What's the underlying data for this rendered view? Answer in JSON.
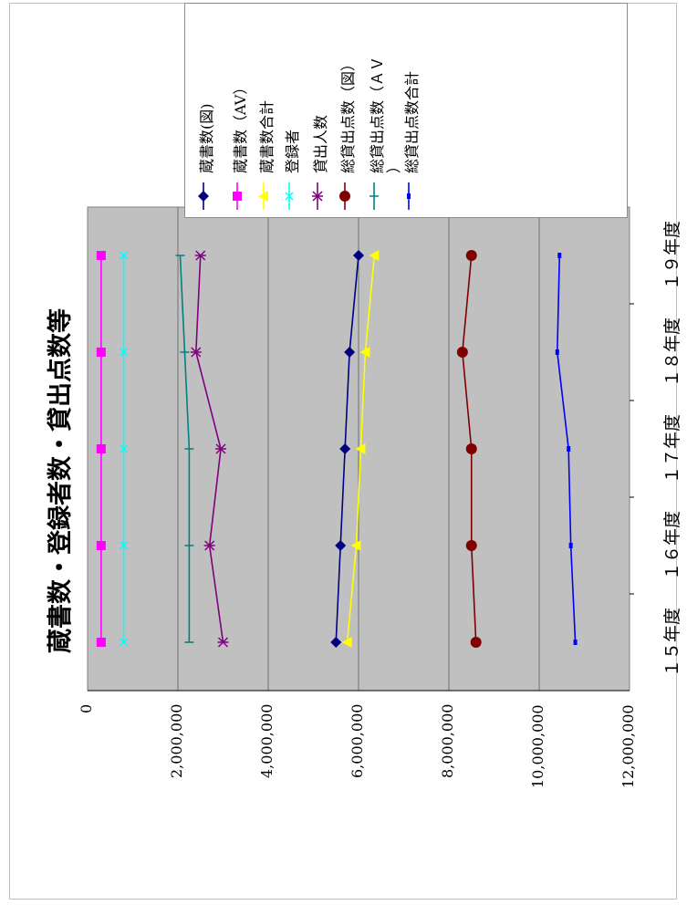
{
  "chart_data": {
    "type": "line",
    "title": "蔵書数・登録者数・貸出点数等",
    "categories": [
      "１５年度",
      "１６年度",
      "１７年度",
      "１８年度",
      "１９年度"
    ],
    "ylim": [
      0,
      12000000
    ],
    "y_ticks": [
      "0",
      "2,000,000",
      "4,000,000",
      "6,000,000",
      "8,000,000",
      "10,000,000",
      "12,000,000"
    ],
    "grid": true,
    "legend_position": "right",
    "background": "#c0c0c0",
    "series": [
      {
        "name": "蔵書数(図)",
        "color": "#000080",
        "marker": "diamond",
        "values": [
          5500000,
          5600000,
          5700000,
          5800000,
          6000000
        ]
      },
      {
        "name": "蔵書数（AV）",
        "color": "#ff00ff",
        "marker": "square",
        "values": [
          300000,
          300000,
          300000,
          300000,
          300000
        ]
      },
      {
        "name": "蔵書数合計",
        "color": "#ffff00",
        "marker": "triangle",
        "values": [
          5750000,
          5950000,
          6050000,
          6150000,
          6350000
        ]
      },
      {
        "name": "登録者",
        "color": "#00ffff",
        "marker": "x",
        "values": [
          800000,
          800000,
          800000,
          800000,
          800000
        ]
      },
      {
        "name": "貸出人数",
        "color": "#800080",
        "marker": "star",
        "values": [
          3000000,
          2700000,
          2950000,
          2400000,
          2500000
        ]
      },
      {
        "name": "総貸出点数（図）",
        "color": "#800000",
        "marker": "circle",
        "values": [
          8600000,
          8500000,
          8500000,
          8300000,
          8500000
        ]
      },
      {
        "name": "総貸出点数（ＡＶ\n）",
        "color": "#008080",
        "marker": "plus",
        "values": [
          2250000,
          2250000,
          2250000,
          2150000,
          2050000
        ]
      },
      {
        "name": "総貸出点数合計",
        "color": "#0000ff",
        "marker": "dash",
        "values": [
          10800000,
          10700000,
          10650000,
          10400000,
          10450000
        ]
      }
    ]
  }
}
